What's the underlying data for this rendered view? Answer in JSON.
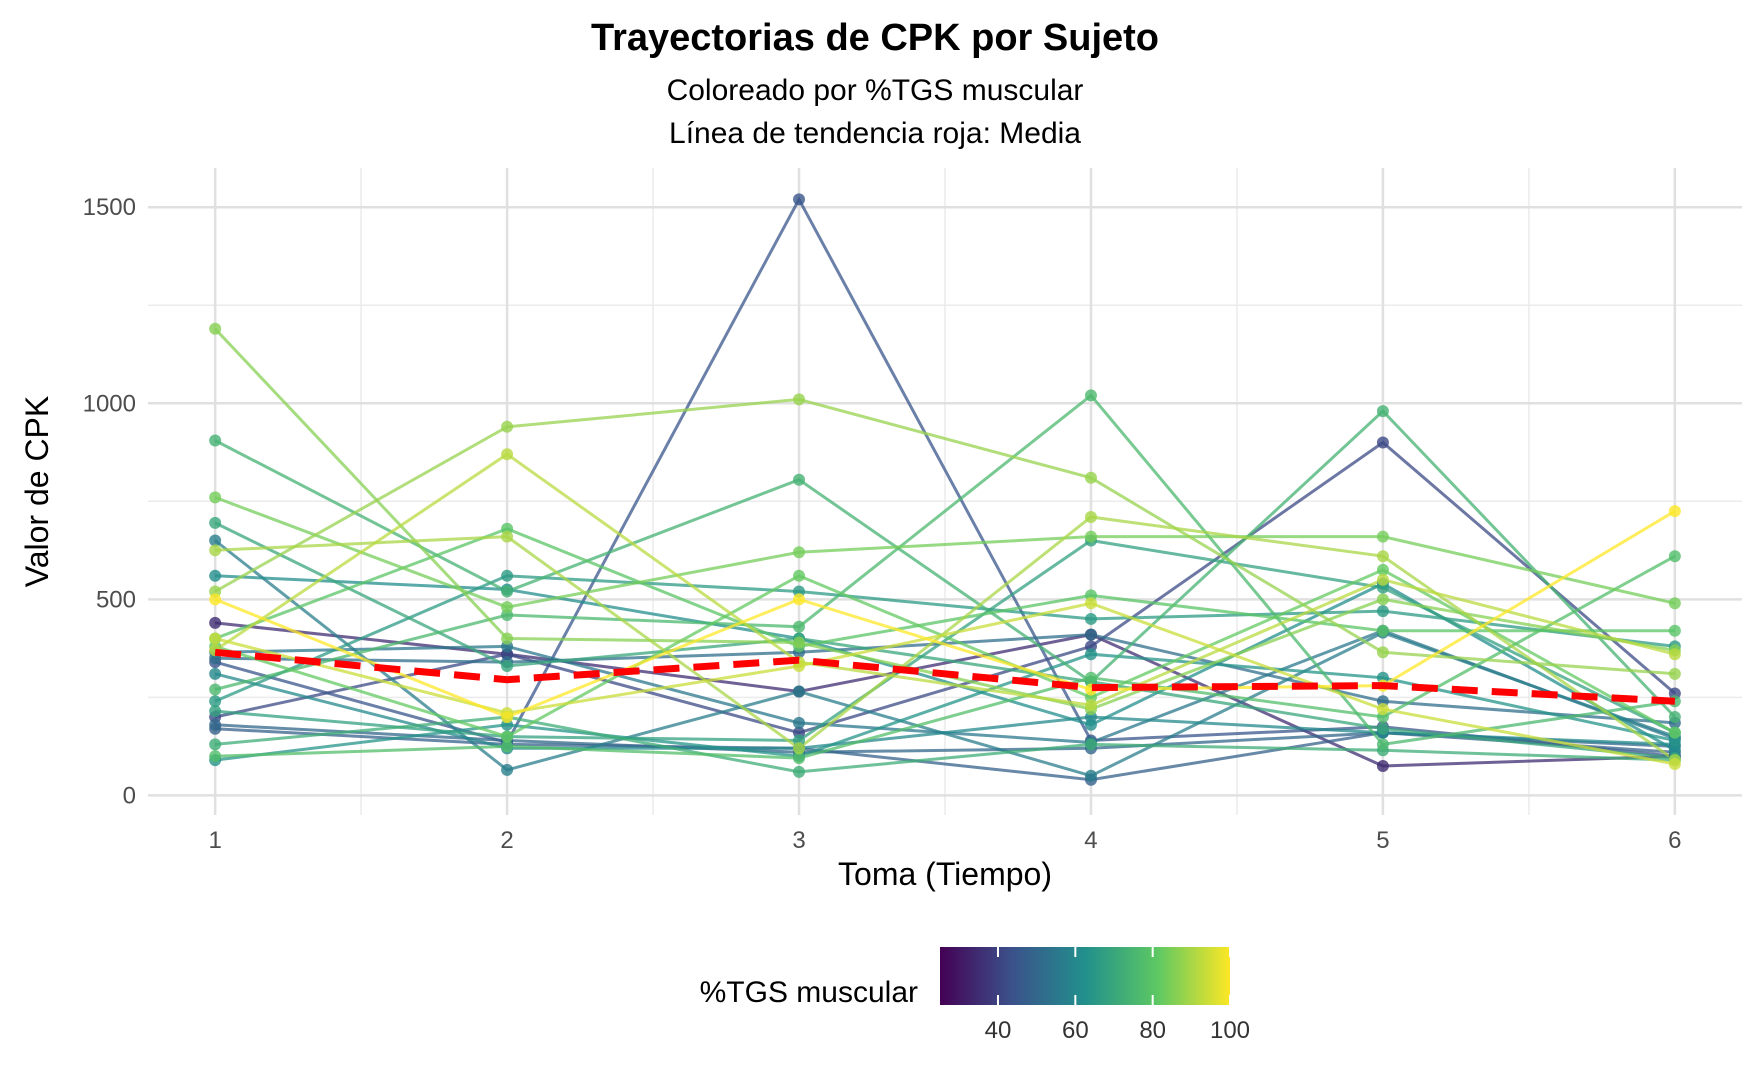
{
  "chart_data": {
    "type": "line",
    "title": "Trayectorias de CPK por Sujeto",
    "subtitle_lines": [
      "Coloreado por %TGS muscular",
      "Línea de tendencia roja: Media"
    ],
    "xlabel": "Toma (Tiempo)",
    "ylabel": "Valor de CPK",
    "x": [
      1,
      2,
      3,
      4,
      5,
      6
    ],
    "xticks": [
      "1",
      "2",
      "3",
      "4",
      "5",
      "6"
    ],
    "xlim": [
      0.77,
      6.23
    ],
    "yticks": [
      0,
      500,
      1000,
      1500
    ],
    "ytick_labels": [
      "0",
      "500",
      "1000",
      "1500"
    ],
    "ylim": [
      -50,
      1600
    ],
    "grid": true,
    "legend": {
      "title": "%TGS muscular",
      "type": "colorbar",
      "position": "bottom",
      "range": [
        25,
        100
      ],
      "ticks": [
        40,
        60,
        80,
        100
      ],
      "tick_labels": [
        "40",
        "60",
        "80",
        "100"
      ],
      "colors": [
        "#440154",
        "#3b528b",
        "#21908c",
        "#5dc863",
        "#fde725"
      ]
    },
    "series": [
      {
        "tgs": 35,
        "values": [
          440,
          360,
          265,
          410,
          75,
          100
        ]
      },
      {
        "tgs": 42,
        "values": [
          200,
          360,
          160,
          380,
          900,
          260
        ]
      },
      {
        "tgs": 45,
        "values": [
          340,
          135,
          1520,
          140,
          175,
          100
        ]
      },
      {
        "tgs": 48,
        "values": [
          170,
          130,
          120,
          40,
          160,
          110
        ]
      },
      {
        "tgs": 50,
        "values": [
          180,
          140,
          110,
          120,
          160,
          125
        ]
      },
      {
        "tgs": 52,
        "values": [
          350,
          340,
          365,
          410,
          240,
          185
        ]
      },
      {
        "tgs": 55,
        "values": [
          365,
          380,
          185,
          135,
          420,
          145
        ]
      },
      {
        "tgs": 57,
        "values": [
          650,
          65,
          265,
          50,
          415,
          150
        ]
      },
      {
        "tgs": 60,
        "values": [
          310,
          120,
          120,
          200,
          160,
          130
        ]
      },
      {
        "tgs": 62,
        "values": [
          560,
          525,
          400,
          180,
          540,
          115
        ]
      },
      {
        "tgs": 64,
        "values": [
          90,
          180,
          100,
          360,
          300,
          140
        ]
      },
      {
        "tgs": 66,
        "values": [
          240,
          560,
          520,
          450,
          470,
          380
        ]
      },
      {
        "tgs": 68,
        "values": [
          215,
          150,
          140,
          650,
          530,
          160
        ]
      },
      {
        "tgs": 70,
        "values": [
          695,
          330,
          400,
          290,
          170,
          95
        ]
      },
      {
        "tgs": 72,
        "values": [
          130,
          200,
          60,
          130,
          115,
          90
        ]
      },
      {
        "tgs": 74,
        "values": [
          905,
          520,
          805,
          290,
          980,
          200
        ]
      },
      {
        "tgs": 76,
        "values": [
          270,
          460,
          430,
          1020,
          130,
          240
        ]
      },
      {
        "tgs": 78,
        "values": [
          100,
          125,
          95,
          300,
          200,
          610
        ]
      },
      {
        "tgs": 80,
        "values": [
          400,
          680,
          380,
          510,
          420,
          420
        ]
      },
      {
        "tgs": 82,
        "values": [
          380,
          150,
          560,
          250,
          575,
          160
        ]
      },
      {
        "tgs": 84,
        "values": [
          760,
          480,
          620,
          660,
          660,
          490
        ]
      },
      {
        "tgs": 86,
        "values": [
          1190,
          400,
          390,
          220,
          500,
          370
        ]
      },
      {
        "tgs": 88,
        "values": [
          520,
          940,
          1010,
          810,
          365,
          310
        ]
      },
      {
        "tgs": 90,
        "values": [
          625,
          660,
          120,
          710,
          610,
          90
        ]
      },
      {
        "tgs": 92,
        "values": [
          370,
          870,
          340,
          230,
          550,
          360
        ]
      },
      {
        "tgs": 94,
        "values": [
          400,
          210,
          330,
          490,
          220,
          80
        ]
      },
      {
        "tgs": 100,
        "values": [
          500,
          200,
          500,
          270,
          280,
          725
        ]
      }
    ],
    "mean_trend": {
      "color": "#ff0000",
      "style": "dashed",
      "values": [
        365,
        295,
        345,
        275,
        280,
        240
      ]
    }
  }
}
